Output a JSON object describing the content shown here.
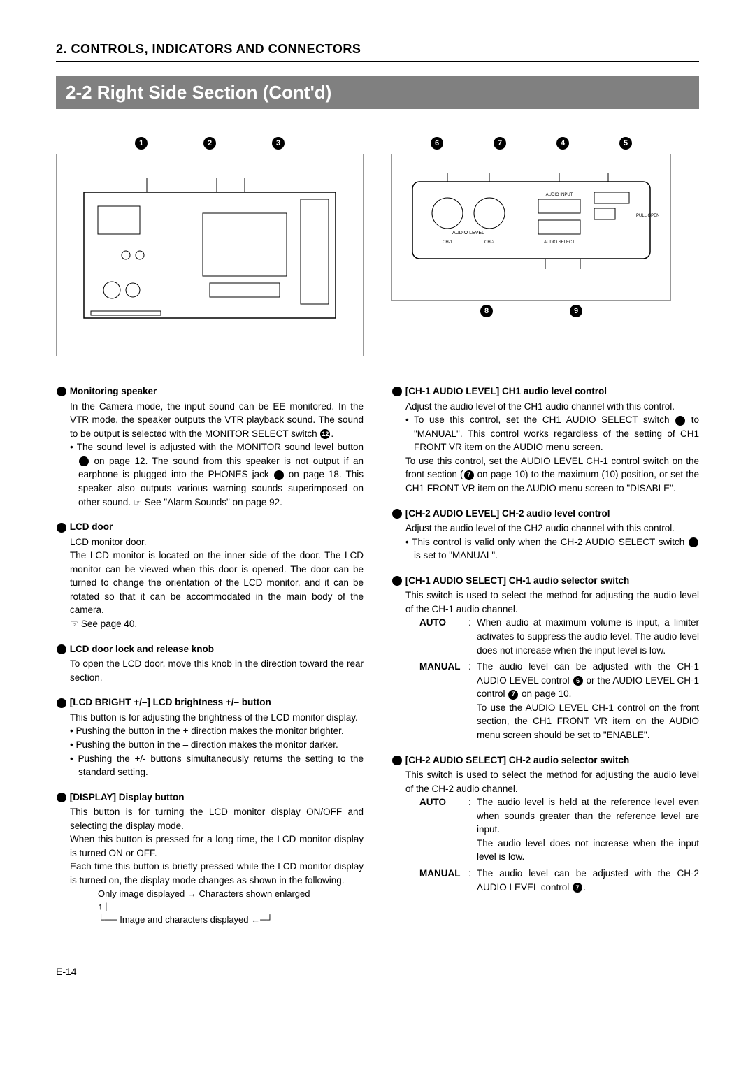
{
  "chapter": "2. CONTROLS, INDICATORS AND CONNECTORS",
  "section_banner": "2-2  Right Side Section (Cont'd)",
  "page_number": "E-14",
  "callouts_left_top": [
    "1",
    "2",
    "3"
  ],
  "callouts_right_top": [
    "6",
    "7",
    "4",
    "5"
  ],
  "callouts_right_bottom": [
    "8",
    "9"
  ],
  "left_col": [
    {
      "num": "1",
      "title": "Monitoring speaker",
      "body": [
        "In the Camera mode, the input sound can be EE monitored. In the VTR mode, the speaker outputs the VTR playback sound. The sound to be output is selected with the MONITOR SELECT switch {12}.",
        "• The sound level is adjusted with the MONITOR sound level button {1} on page 12. The sound from this speaker is not output if an earphone is plugged into the PHONES jack {5} on page 18. This speaker also outputs various warning sounds superimposed on other sound. ☞ See \"Alarm Sounds\" on page 92."
      ]
    },
    {
      "num": "2",
      "title": "LCD door",
      "body": [
        "LCD monitor door.",
        "The LCD monitor is located on the inner side of the door. The LCD monitor can be viewed when this door is opened. The door can be turned to change the orientation of the LCD monitor, and it can be rotated so that it can be accommodated in the main body of the camera.",
        "☞ See page 40."
      ]
    },
    {
      "num": "3",
      "title": "LCD door lock and release knob",
      "body": [
        "To open the LCD door, move this knob in the direction toward the rear section."
      ]
    },
    {
      "num": "4",
      "title": "[LCD BRIGHT +/–] LCD brightness +/– button",
      "body": [
        "This button is for adjusting the brightness of the LCD monitor display.",
        "• Pushing the button in the + direction makes the monitor brighter.",
        "• Pushing the button in the – direction makes the monitor darker.",
        "• Pushing the +/- buttons simultaneously returns the setting to the standard setting."
      ]
    },
    {
      "num": "5",
      "title": "[DISPLAY] Display button",
      "body": [
        "This button is for turning the LCD monitor display ON/OFF and selecting the display mode.",
        "When this button is pressed for a long time, the LCD monitor display is turned ON or OFF.",
        "Each time this button is briefly pressed while the LCD monitor display is turned on, the display mode changes as shown in the following."
      ],
      "flow": [
        "Only image displayed → Characters shown enlarged",
        "↑                                                            |",
        "└── Image and characters displayed ←─┘"
      ]
    }
  ],
  "right_col": [
    {
      "num": "6",
      "title": "[CH-1 AUDIO LEVEL] CH1 audio level control",
      "body": [
        "Adjust the audio level of the CH1 audio channel with this control.",
        "• To use this control, set the CH1 AUDIO SELECT switch {8} to \"MANUAL\". This control works regardless of the setting of CH1 FRONT VR item on the AUDIO menu screen.",
        "To use this control, set the AUDIO LEVEL CH-1 control switch on the front section ({7} on page 10) to the maximum (10) position, or set the CH1 FRONT VR item on the AUDIO menu screen to \"DISABLE\"."
      ]
    },
    {
      "num": "7",
      "title": "[CH-2 AUDIO LEVEL] CH-2 audio level control",
      "body": [
        "Adjust the audio level of the CH2 audio channel with this control.",
        "• This control is valid only when the CH-2 AUDIO SELECT switch {9} is set to \"MANUAL\"."
      ]
    },
    {
      "num": "8",
      "title": "[CH-1 AUDIO SELECT] CH-1 audio selector switch",
      "body": [
        "This switch is used to select the method for adjusting the audio level of the CH-1 audio channel."
      ],
      "defs": [
        {
          "term": "AUTO",
          "desc": "When audio at maximum volume is input, a limiter activates to suppress the audio level. The audio level does not increase when the input level is low."
        },
        {
          "term": "MANUAL",
          "desc": "The audio level can be adjusted with the CH-1 AUDIO LEVEL control {6} or the AUDIO LEVEL CH-1 control {7} on page 10.\nTo use the AUDIO LEVEL CH-1 control on the front section, the CH1 FRONT VR item on the AUDIO menu screen should be set to \"ENABLE\"."
        }
      ]
    },
    {
      "num": "9",
      "title": "[CH-2 AUDIO SELECT] CH-2 audio selector switch",
      "body": [
        "This switch is used to select the method for adjusting the audio level of the CH-2 audio channel."
      ],
      "defs": [
        {
          "term": "AUTO",
          "desc": "The audio level is held at the reference level even when sounds greater than the reference level are input.\nThe audio level does not increase when the input level is low."
        },
        {
          "term": "MANUAL",
          "desc": "The audio level can be adjusted with the CH-2 AUDIO LEVEL control {7}."
        }
      ]
    }
  ]
}
